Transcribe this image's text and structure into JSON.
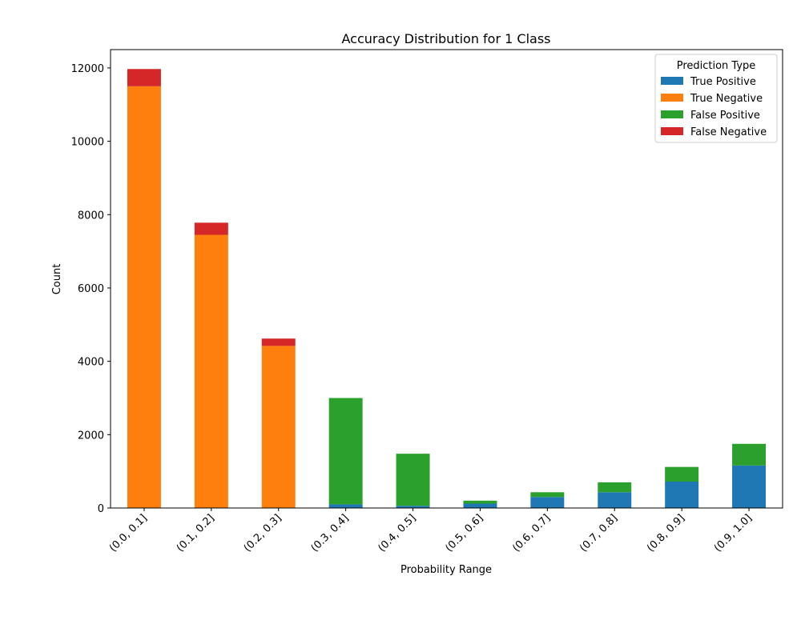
{
  "chart_data": {
    "type": "bar",
    "stacked": true,
    "title": "Accuracy Distribution for 1 Class",
    "xlabel": "Probability Range",
    "ylabel": "Count",
    "ylim": [
      0,
      12500
    ],
    "yticks": [
      0,
      2000,
      4000,
      6000,
      8000,
      10000,
      12000
    ],
    "categories": [
      "(0.0, 0.1]",
      "(0.1, 0.2]",
      "(0.2, 0.3]",
      "(0.3, 0.4]",
      "(0.4, 0.5]",
      "(0.5, 0.6]",
      "(0.6, 0.7]",
      "(0.7, 0.8]",
      "(0.8, 0.9]",
      "(0.9, 1.0]"
    ],
    "legend": {
      "title": "Prediction Type",
      "position": "top-right"
    },
    "series": [
      {
        "name": "True Positive",
        "color": "#1f77b4",
        "values": [
          0,
          0,
          0,
          100,
          60,
          120,
          300,
          430,
          720,
          1160
        ]
      },
      {
        "name": "True Negative",
        "color": "#ff7f0e",
        "values": [
          11500,
          7450,
          4420,
          0,
          0,
          0,
          0,
          0,
          0,
          0
        ]
      },
      {
        "name": "False Positive",
        "color": "#2ca02c",
        "values": [
          0,
          0,
          0,
          2900,
          1420,
          80,
          130,
          270,
          400,
          590
        ]
      },
      {
        "name": "False Negative",
        "color": "#d62728",
        "values": [
          470,
          330,
          200,
          0,
          0,
          0,
          0,
          0,
          0,
          0
        ]
      }
    ]
  }
}
